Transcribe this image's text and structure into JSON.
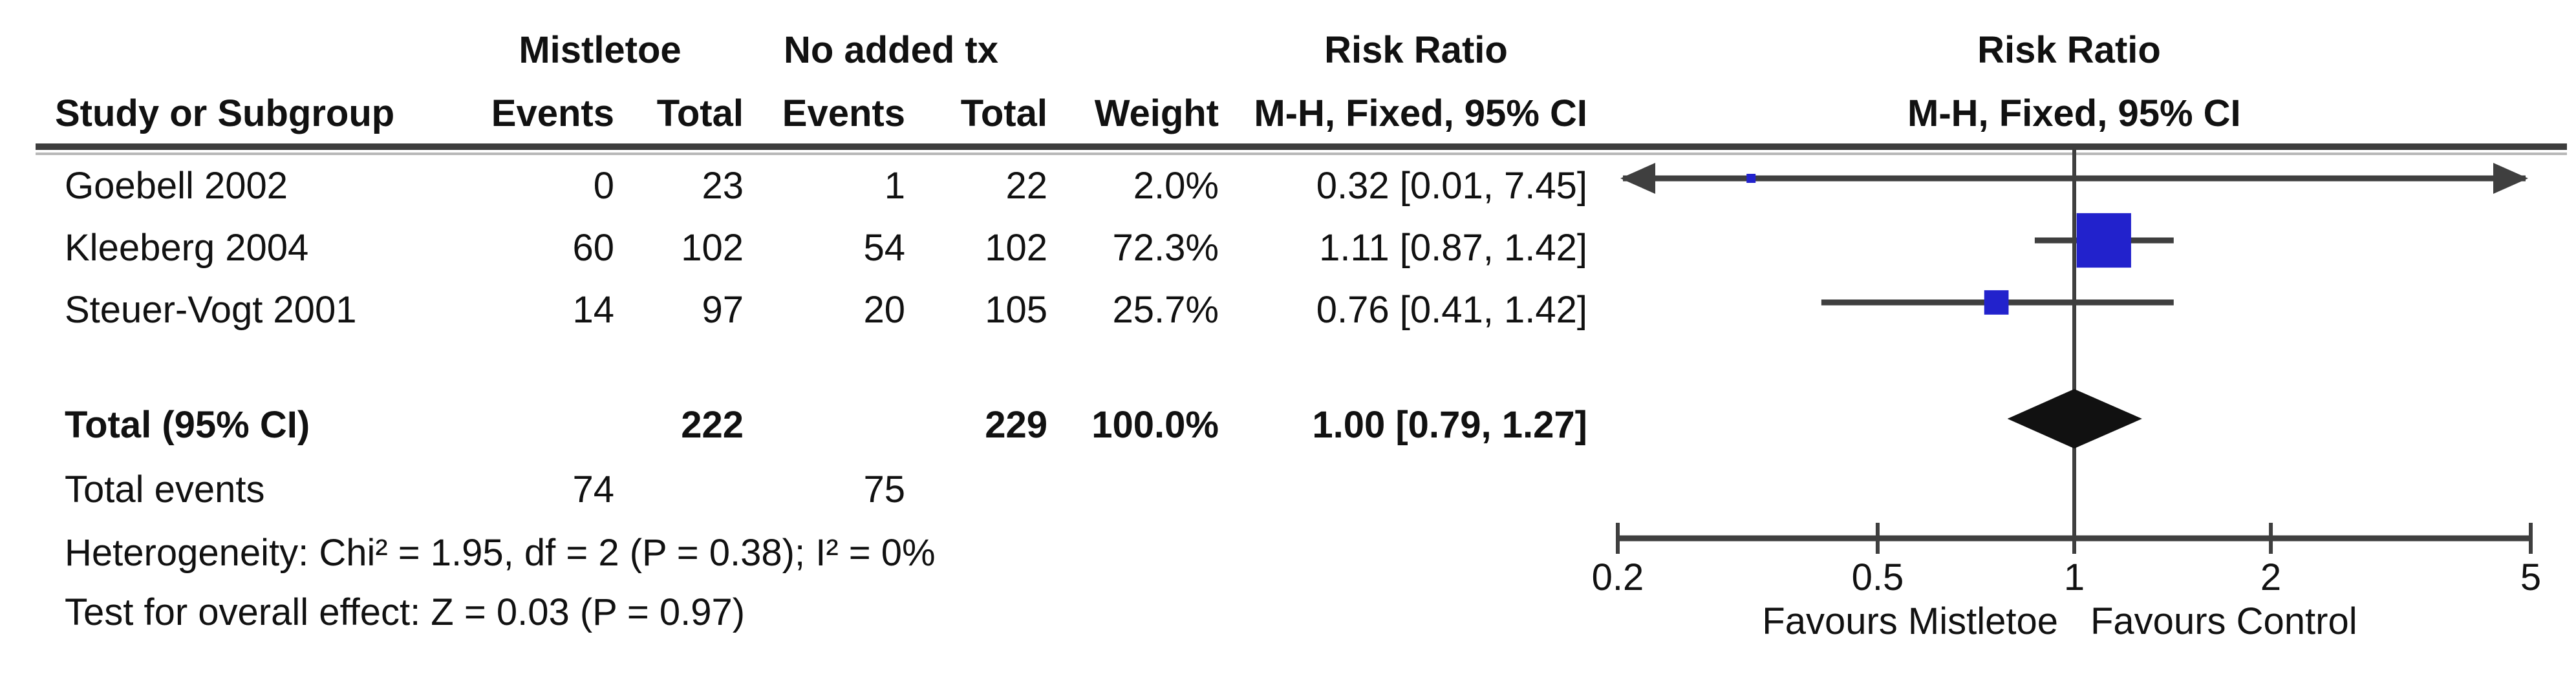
{
  "table": {
    "headers": {
      "group_mistletoe": "Mistletoe",
      "group_no_added_tx": "No added tx",
      "risk_ratio_text_col": "Risk Ratio",
      "risk_ratio_plot_col": "Risk Ratio",
      "study": "Study or Subgroup",
      "events1": "Events",
      "total1": "Total",
      "events2": "Events",
      "total2": "Total",
      "weight": "Weight",
      "mh_fixed_text_col": "M-H, Fixed, 95% CI",
      "mh_fixed_plot_col": "M-H, Fixed, 95% CI"
    },
    "rows": [
      {
        "study": "Goebell 2002",
        "e1": "0",
        "t1": "23",
        "e2": "1",
        "t2": "22",
        "weight": "2.0%",
        "ci": "0.32 [0.01, 7.45]"
      },
      {
        "study": "Kleeberg 2004",
        "e1": "60",
        "t1": "102",
        "e2": "54",
        "t2": "102",
        "weight": "72.3%",
        "ci": "1.11 [0.87, 1.42]"
      },
      {
        "study": "Steuer-Vogt 2001",
        "e1": "14",
        "t1": "97",
        "e2": "20",
        "t2": "105",
        "weight": "25.7%",
        "ci": "0.76 [0.41, 1.42]"
      }
    ],
    "total_row": {
      "label": "Total (95% CI)",
      "t1": "222",
      "t2": "229",
      "weight": "100.0%",
      "ci": "1.00 [0.79, 1.27]"
    },
    "total_events_row": {
      "label": "Total events",
      "e1": "74",
      "e2": "75"
    },
    "heterogeneity": "Heterogeneity: Chi² = 1.95, df = 2 (P = 0.38); I² = 0%",
    "overall_effect": "Test for overall effect: Z = 0.03 (P = 0.97)"
  },
  "chart_data": {
    "type": "forest",
    "x_scale": "log",
    "axis_range": [
      0.2,
      5
    ],
    "axis_ticks": [
      "0.2",
      "0.5",
      "1",
      "2",
      "5"
    ],
    "null_line": 1,
    "favours_left": "Favours Mistletoe",
    "favours_right": "Favours Control",
    "marker_color": "#2222cc",
    "diamond_color": "#111111",
    "line_color": "#3f3f3f",
    "studies": [
      {
        "name": "Goebell 2002",
        "rr": 0.32,
        "ci_low": 0.01,
        "ci_high": 7.45,
        "weight_pct": 2.0
      },
      {
        "name": "Kleeberg 2004",
        "rr": 1.11,
        "ci_low": 0.87,
        "ci_high": 1.42,
        "weight_pct": 72.3
      },
      {
        "name": "Steuer-Vogt 2001",
        "rr": 0.76,
        "ci_low": 0.41,
        "ci_high": 1.42,
        "weight_pct": 25.7
      }
    ],
    "total": {
      "rr": 1.0,
      "ci_low": 0.79,
      "ci_high": 1.27,
      "weight_pct": 100.0
    }
  }
}
